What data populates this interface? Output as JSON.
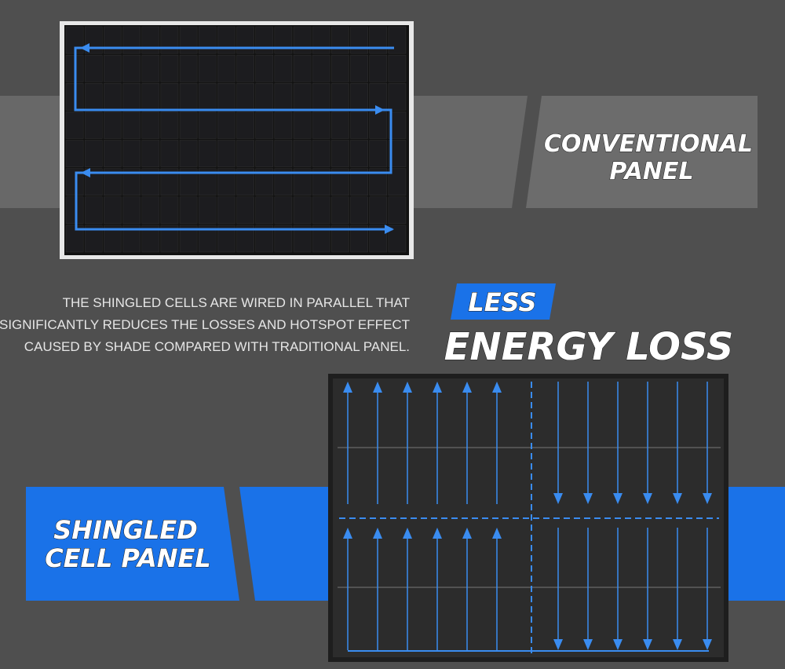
{
  "conventional_label": {
    "lines": [
      "CONVENTIONAL",
      "PANEL"
    ]
  },
  "description": {
    "lines": [
      "THE SHINGLED CELLS ARE WIRED IN PARALLEL THAT",
      "SIGNIFICANTLY REDUCES THE LOSSES AND HOTSPOT EFFECT",
      "CAUSED BY SHADE COMPARED WITH TRADITIONAL PANEL."
    ]
  },
  "headline": {
    "badge": "LESS",
    "title": "ENERGY LOSS"
  },
  "shingled_label": {
    "lines": [
      "SHINGLED",
      "CELL PANEL"
    ]
  }
}
